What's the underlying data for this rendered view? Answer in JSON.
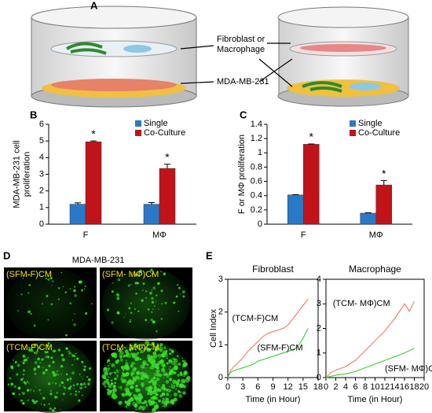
{
  "panel_labels": [
    "A",
    "B",
    "C",
    "D",
    "E"
  ],
  "diagram": {
    "upper_label": [
      "Fibroblast or",
      "Macrophage"
    ],
    "lower_label": "MDA-MB-231"
  },
  "micrographs": {
    "title": "MDA-MB-231",
    "labels": [
      "(SFM-F)CM",
      "(SFM- MΦ)CM",
      "(TCM-F)CM",
      "(TCM- MΦ)CM"
    ]
  },
  "chart_data": [
    {
      "type": "bar",
      "ylabel": [
        "MDA-MB-231 cell",
        "proliferation"
      ],
      "categories": [
        "F",
        "MΦ"
      ],
      "series": [
        {
          "name": "Single",
          "color": "#2a78c8",
          "values": [
            1.2,
            1.2
          ],
          "errors": [
            0.08,
            0.1
          ]
        },
        {
          "name": "Co-Culture",
          "color": "#c0141a",
          "values": [
            4.95,
            3.35
          ],
          "errors": [
            0.05,
            0.25
          ]
        }
      ],
      "significance": [
        "*",
        "*"
      ],
      "ylim": [
        0,
        6
      ],
      "yticks": [
        0,
        1,
        2,
        3,
        4,
        5,
        6
      ]
    },
    {
      "type": "bar",
      "ylabel": [
        "F or MΦ proliferation"
      ],
      "categories": [
        "F",
        "MΦ"
      ],
      "series": [
        {
          "name": "Single",
          "color": "#2a78c8",
          "values": [
            0.41,
            0.155
          ],
          "errors": [
            0.005,
            0.005
          ]
        },
        {
          "name": "Co-Culture",
          "color": "#c0141a",
          "values": [
            1.12,
            0.55
          ],
          "errors": [
            0.005,
            0.06
          ]
        }
      ],
      "significance": [
        "*",
        "*"
      ],
      "ylim": [
        0,
        1.4
      ],
      "yticks": [
        0,
        0.2,
        0.4,
        0.6,
        0.8,
        1,
        1.2,
        1.4
      ]
    },
    {
      "type": "line",
      "title": "Fibroblast",
      "ylabel": [
        "Cell Index"
      ],
      "xlabel": "Time (in Hour)",
      "x": [
        0,
        0.5,
        1,
        2,
        3,
        4,
        5,
        6,
        7,
        8,
        9,
        10,
        11,
        12,
        13,
        14,
        15,
        16
      ],
      "series": [
        {
          "name": "(TCM-F)CM",
          "color": "#f08070",
          "values": [
            0,
            0.2,
            0.3,
            0.45,
            0.6,
            0.8,
            0.95,
            1.1,
            1.25,
            1.35,
            1.4,
            1.45,
            1.5,
            1.6,
            1.8,
            2.0,
            2.2,
            2.4
          ]
        },
        {
          "name": "(SFM-F)CM",
          "color": "#44d040",
          "values": [
            0,
            0.15,
            0.2,
            0.25,
            0.3,
            0.35,
            0.4,
            0.5,
            0.55,
            0.6,
            0.65,
            0.7,
            0.75,
            0.8,
            0.85,
            0.95,
            1.2,
            1.5
          ]
        }
      ],
      "xlim": [
        0,
        18
      ],
      "xticks": [
        0,
        3,
        6,
        9,
        12,
        15,
        18
      ],
      "ylim": [
        0,
        3
      ],
      "yticks": [
        0,
        1,
        2,
        3
      ]
    },
    {
      "type": "line",
      "title": "Macrophage",
      "xlabel": "Time (in Hour)",
      "x": [
        0,
        1,
        2,
        4,
        6,
        8,
        10,
        12,
        14,
        16,
        17,
        18
      ],
      "series": [
        {
          "name": "(TCM- MΦ)CM",
          "color": "#f08070",
          "values": [
            0,
            0.2,
            0.3,
            0.45,
            0.7,
            1.1,
            1.5,
            1.9,
            2.4,
            3.0,
            2.7,
            3.1
          ]
        },
        {
          "name": "(SFM- MΦ)CM",
          "color": "#44d040",
          "values": [
            0,
            0.05,
            0.1,
            0.15,
            0.25,
            0.4,
            0.55,
            0.7,
            0.85,
            1.0,
            1.1,
            1.2
          ]
        }
      ],
      "xlim": [
        0,
        20
      ],
      "xticks": [
        0,
        2,
        4,
        6,
        8,
        10,
        12,
        14,
        16,
        18,
        20
      ],
      "ylim": [
        0,
        4
      ],
      "yticks": [
        0,
        1,
        2,
        3,
        4
      ]
    }
  ]
}
